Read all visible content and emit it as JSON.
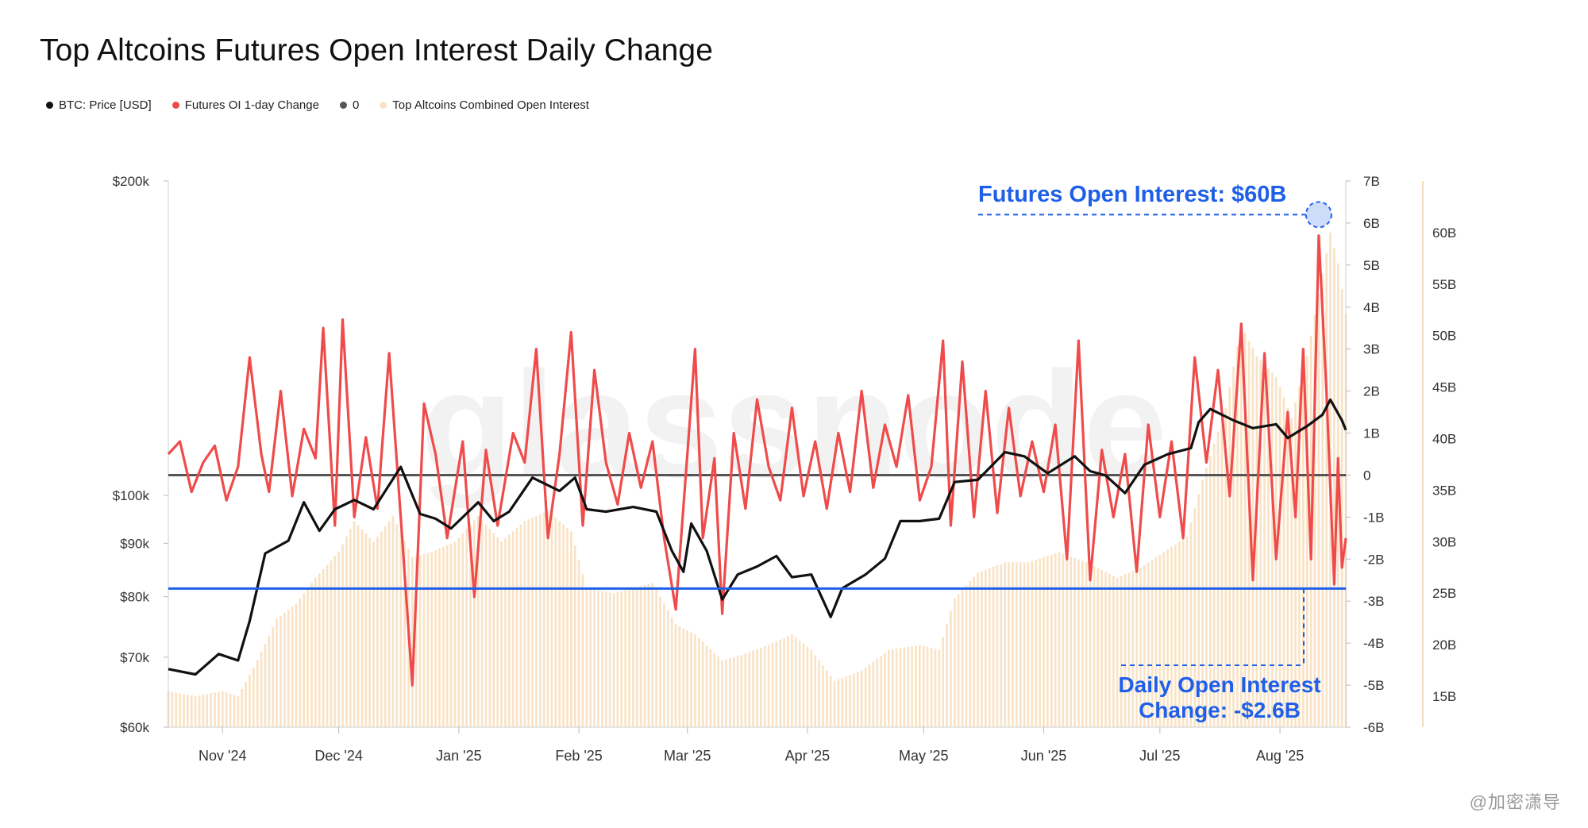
{
  "title": "Top Altcoins Futures Open Interest Daily Change",
  "watermark": "glassnode",
  "corner_mark": "@加密潇导",
  "legend": [
    {
      "label": "BTC: Price [USD]",
      "color": "#111111"
    },
    {
      "label": "Futures OI 1-day Change",
      "color": "#ef4b4b"
    },
    {
      "label": "0",
      "color": "#555555"
    },
    {
      "label": "Top Altcoins Combined Open Interest",
      "color": "#f9e2c4"
    }
  ],
  "annotations": {
    "top_label": "Futures Open Interest: $60B",
    "bottom_label_line1": "Daily Open Interest",
    "bottom_label_line2": "Change: -$2.6B",
    "color": "#1f5fe8"
  },
  "chart_data": {
    "type": "line",
    "x_start": "2024-10-18",
    "x_end": "2025-08-18",
    "x_ticks": [
      "Nov '24",
      "Dec '24",
      "Jan '25",
      "Feb '25",
      "Mar '25",
      "Apr '25",
      "May '25",
      "Jun '25",
      "Jul '25",
      "Aug '25"
    ],
    "y_left": {
      "scale": "log",
      "range": [
        60000,
        200000
      ],
      "ticks": [
        {
          "v": 200000,
          "l": "$200k"
        },
        {
          "v": 100000,
          "l": "$100k"
        },
        {
          "v": 90000,
          "l": "$90k"
        },
        {
          "v": 80000,
          "l": "$80k"
        },
        {
          "v": 70000,
          "l": "$70k"
        },
        {
          "v": 60000,
          "l": "$60k"
        }
      ]
    },
    "y_right": {
      "range": [
        -6,
        7
      ],
      "unit": "B",
      "ticks": [
        "7B",
        "6B",
        "5B",
        "4B",
        "3B",
        "2B",
        "1B",
        "0",
        "-1B",
        "-2B",
        "-3B",
        "-4B",
        "-5B",
        "-6B"
      ]
    },
    "y_far_right": {
      "range": [
        12,
        65
      ],
      "unit": "B",
      "ticks": [
        "60B",
        "55B",
        "50B",
        "45B",
        "40B",
        "35B",
        "30B",
        "25B",
        "20B",
        "15B"
      ]
    },
    "reference_line": {
      "axis": "y_right",
      "value": -2.7
    },
    "series": [
      {
        "name": "BTC: Price [USD]",
        "axis": "y_left",
        "color": "#111111",
        "points": [
          [
            "2024-10-18",
            68200
          ],
          [
            "2024-10-25",
            67400
          ],
          [
            "2024-10-31",
            70500
          ],
          [
            "2024-11-05",
            69500
          ],
          [
            "2024-11-08",
            75800
          ],
          [
            "2024-11-12",
            88000
          ],
          [
            "2024-11-18",
            90500
          ],
          [
            "2024-11-22",
            98500
          ],
          [
            "2024-11-26",
            92500
          ],
          [
            "2024-11-30",
            97000
          ],
          [
            "2024-12-05",
            99000
          ],
          [
            "2024-12-10",
            97000
          ],
          [
            "2024-12-17",
            106500
          ],
          [
            "2024-12-22",
            96000
          ],
          [
            "2024-12-26",
            95000
          ],
          [
            "2024-12-30",
            93000
          ],
          [
            "2025-01-06",
            98500
          ],
          [
            "2025-01-10",
            94500
          ],
          [
            "2025-01-14",
            96500
          ],
          [
            "2025-01-20",
            104000
          ],
          [
            "2025-01-27",
            101000
          ],
          [
            "2025-01-31",
            104000
          ],
          [
            "2025-02-03",
            97000
          ],
          [
            "2025-02-08",
            96500
          ],
          [
            "2025-02-15",
            97500
          ],
          [
            "2025-02-21",
            96500
          ],
          [
            "2025-02-25",
            88500
          ],
          [
            "2025-02-28",
            84500
          ],
          [
            "2025-03-02",
            94000
          ],
          [
            "2025-03-06",
            88500
          ],
          [
            "2025-03-10",
            79500
          ],
          [
            "2025-03-14",
            84000
          ],
          [
            "2025-03-19",
            85500
          ],
          [
            "2025-03-24",
            87500
          ],
          [
            "2025-03-28",
            83500
          ],
          [
            "2025-04-02",
            84000
          ],
          [
            "2025-04-07",
            76500
          ],
          [
            "2025-04-10",
            81500
          ],
          [
            "2025-04-16",
            84000
          ],
          [
            "2025-04-21",
            87000
          ],
          [
            "2025-04-25",
            94500
          ],
          [
            "2025-04-30",
            94500
          ],
          [
            "2025-05-05",
            95000
          ],
          [
            "2025-05-09",
            103000
          ],
          [
            "2025-05-15",
            103500
          ],
          [
            "2025-05-22",
            110000
          ],
          [
            "2025-05-27",
            109000
          ],
          [
            "2025-06-02",
            105000
          ],
          [
            "2025-06-09",
            109000
          ],
          [
            "2025-06-13",
            105500
          ],
          [
            "2025-06-17",
            104500
          ],
          [
            "2025-06-22",
            100500
          ],
          [
            "2025-06-27",
            107000
          ],
          [
            "2025-07-03",
            109500
          ],
          [
            "2025-07-09",
            111000
          ],
          [
            "2025-07-11",
            117500
          ],
          [
            "2025-07-14",
            121000
          ],
          [
            "2025-07-20",
            118000
          ],
          [
            "2025-07-25",
            116000
          ],
          [
            "2025-07-31",
            117000
          ],
          [
            "2025-08-03",
            113500
          ],
          [
            "2025-08-08",
            116500
          ],
          [
            "2025-08-12",
            119500
          ],
          [
            "2025-08-14",
            123500
          ],
          [
            "2025-08-17",
            118000
          ],
          [
            "2025-08-18",
            115500
          ]
        ]
      },
      {
        "name": "Futures OI 1-day Change",
        "axis": "y_right",
        "color": "#ef4b4b",
        "points": [
          [
            "2024-10-18",
            0.5
          ],
          [
            "2024-10-21",
            0.8
          ],
          [
            "2024-10-24",
            -0.4
          ],
          [
            "2024-10-27",
            0.3
          ],
          [
            "2024-10-30",
            0.7
          ],
          [
            "2024-11-02",
            -0.6
          ],
          [
            "2024-11-05",
            0.2
          ],
          [
            "2024-11-08",
            2.8
          ],
          [
            "2024-11-11",
            0.5
          ],
          [
            "2024-11-13",
            -0.4
          ],
          [
            "2024-11-16",
            2.0
          ],
          [
            "2024-11-19",
            -0.5
          ],
          [
            "2024-11-22",
            1.1
          ],
          [
            "2024-11-25",
            0.4
          ],
          [
            "2024-11-27",
            3.5
          ],
          [
            "2024-11-30",
            -1.2
          ],
          [
            "2024-12-02",
            3.7
          ],
          [
            "2024-12-05",
            -1.0
          ],
          [
            "2024-12-08",
            0.9
          ],
          [
            "2024-12-11",
            -0.8
          ],
          [
            "2024-12-14",
            2.9
          ],
          [
            "2024-12-17",
            -1.0
          ],
          [
            "2024-12-20",
            -5.0
          ],
          [
            "2024-12-23",
            1.7
          ],
          [
            "2024-12-26",
            0.5
          ],
          [
            "2024-12-29",
            -1.5
          ],
          [
            "2025-01-02",
            0.8
          ],
          [
            "2025-01-05",
            -2.9
          ],
          [
            "2025-01-08",
            0.6
          ],
          [
            "2025-01-11",
            -1.2
          ],
          [
            "2025-01-15",
            1.0
          ],
          [
            "2025-01-18",
            0.3
          ],
          [
            "2025-01-21",
            3.0
          ],
          [
            "2025-01-24",
            -1.5
          ],
          [
            "2025-01-27",
            0.5
          ],
          [
            "2025-01-30",
            3.4
          ],
          [
            "2025-02-02",
            -1.2
          ],
          [
            "2025-02-05",
            2.5
          ],
          [
            "2025-02-08",
            0.3
          ],
          [
            "2025-02-11",
            -0.7
          ],
          [
            "2025-02-14",
            1.0
          ],
          [
            "2025-02-17",
            -0.3
          ],
          [
            "2025-02-20",
            0.8
          ],
          [
            "2025-02-23",
            -1.5
          ],
          [
            "2025-02-26",
            -3.2
          ],
          [
            "2025-03-01",
            0.5
          ],
          [
            "2025-03-03",
            3.0
          ],
          [
            "2025-03-05",
            -1.5
          ],
          [
            "2025-03-08",
            0.4
          ],
          [
            "2025-03-10",
            -3.3
          ],
          [
            "2025-03-13",
            1.0
          ],
          [
            "2025-03-16",
            -0.8
          ],
          [
            "2025-03-19",
            1.8
          ],
          [
            "2025-03-22",
            0.2
          ],
          [
            "2025-03-25",
            -0.6
          ],
          [
            "2025-03-28",
            1.6
          ],
          [
            "2025-03-31",
            -0.5
          ],
          [
            "2025-04-03",
            0.8
          ],
          [
            "2025-04-06",
            -0.8
          ],
          [
            "2025-04-09",
            1.0
          ],
          [
            "2025-04-12",
            -0.4
          ],
          [
            "2025-04-15",
            2.0
          ],
          [
            "2025-04-18",
            -0.3
          ],
          [
            "2025-04-21",
            1.2
          ],
          [
            "2025-04-24",
            0.2
          ],
          [
            "2025-04-27",
            1.9
          ],
          [
            "2025-04-30",
            -0.6
          ],
          [
            "2025-05-03",
            0.2
          ],
          [
            "2025-05-06",
            3.2
          ],
          [
            "2025-05-08",
            -1.2
          ],
          [
            "2025-05-11",
            2.7
          ],
          [
            "2025-05-14",
            -1.0
          ],
          [
            "2025-05-17",
            2.0
          ],
          [
            "2025-05-20",
            -0.9
          ],
          [
            "2025-05-23",
            1.6
          ],
          [
            "2025-05-26",
            -0.5
          ],
          [
            "2025-05-29",
            0.8
          ],
          [
            "2025-06-01",
            -0.4
          ],
          [
            "2025-06-04",
            1.2
          ],
          [
            "2025-06-07",
            -2.0
          ],
          [
            "2025-06-10",
            3.2
          ],
          [
            "2025-06-13",
            -2.5
          ],
          [
            "2025-06-16",
            0.6
          ],
          [
            "2025-06-19",
            -1.0
          ],
          [
            "2025-06-22",
            0.5
          ],
          [
            "2025-06-25",
            -2.3
          ],
          [
            "2025-06-28",
            1.2
          ],
          [
            "2025-07-01",
            -1.0
          ],
          [
            "2025-07-04",
            0.8
          ],
          [
            "2025-07-07",
            -1.5
          ],
          [
            "2025-07-10",
            2.8
          ],
          [
            "2025-07-13",
            0.3
          ],
          [
            "2025-07-16",
            2.5
          ],
          [
            "2025-07-19",
            -0.5
          ],
          [
            "2025-07-22",
            3.6
          ],
          [
            "2025-07-25",
            -2.5
          ],
          [
            "2025-07-28",
            2.9
          ],
          [
            "2025-07-31",
            -2.0
          ],
          [
            "2025-08-03",
            1.5
          ],
          [
            "2025-08-05",
            -1.0
          ],
          [
            "2025-08-07",
            3.0
          ],
          [
            "2025-08-09",
            -2.0
          ],
          [
            "2025-08-11",
            5.7
          ],
          [
            "2025-08-13",
            2.0
          ],
          [
            "2025-08-15",
            -2.6
          ],
          [
            "2025-08-16",
            0.4
          ],
          [
            "2025-08-17",
            -2.2
          ],
          [
            "2025-08-18",
            -1.5
          ]
        ]
      },
      {
        "name": "Top Altcoins Combined Open Interest",
        "axis": "y_far_right",
        "color": "#f7d9b3",
        "points": [
          [
            "2024-10-18",
            15.5
          ],
          [
            "2024-10-25",
            15.0
          ],
          [
            "2024-11-01",
            15.5
          ],
          [
            "2024-11-05",
            15.0
          ],
          [
            "2024-11-10",
            18.5
          ],
          [
            "2024-11-15",
            22.5
          ],
          [
            "2024-11-20",
            24.0
          ],
          [
            "2024-11-25",
            26.5
          ],
          [
            "2024-12-01",
            29.0
          ],
          [
            "2024-12-05",
            32.0
          ],
          [
            "2024-12-10",
            30.0
          ],
          [
            "2024-12-15",
            32.5
          ],
          [
            "2024-12-20",
            28.5
          ],
          [
            "2024-12-25",
            29.0
          ],
          [
            "2024-12-31",
            30.0
          ],
          [
            "2025-01-06",
            32.5
          ],
          [
            "2025-01-12",
            30.0
          ],
          [
            "2025-01-18",
            32.0
          ],
          [
            "2025-01-24",
            33.0
          ],
          [
            "2025-01-30",
            31.0
          ],
          [
            "2025-02-03",
            25.5
          ],
          [
            "2025-02-10",
            25.0
          ],
          [
            "2025-02-20",
            26.0
          ],
          [
            "2025-02-26",
            22.0
          ],
          [
            "2025-03-03",
            21.0
          ],
          [
            "2025-03-10",
            18.5
          ],
          [
            "2025-03-15",
            19.0
          ],
          [
            "2025-03-22",
            20.0
          ],
          [
            "2025-03-28",
            21.0
          ],
          [
            "2025-04-02",
            19.5
          ],
          [
            "2025-04-08",
            16.5
          ],
          [
            "2025-04-15",
            17.5
          ],
          [
            "2025-04-22",
            19.5
          ],
          [
            "2025-04-30",
            20.0
          ],
          [
            "2025-05-05",
            19.5
          ],
          [
            "2025-05-09",
            24.5
          ],
          [
            "2025-05-15",
            27.0
          ],
          [
            "2025-05-22",
            28.0
          ],
          [
            "2025-05-28",
            28.0
          ],
          [
            "2025-06-05",
            29.0
          ],
          [
            "2025-06-12",
            28.0
          ],
          [
            "2025-06-20",
            26.5
          ],
          [
            "2025-06-26",
            27.5
          ],
          [
            "2025-07-02",
            29.0
          ],
          [
            "2025-07-08",
            30.5
          ],
          [
            "2025-07-12",
            36.0
          ],
          [
            "2025-07-18",
            43.0
          ],
          [
            "2025-07-22",
            51.0
          ],
          [
            "2025-07-26",
            48.0
          ],
          [
            "2025-07-31",
            46.0
          ],
          [
            "2025-08-04",
            42.0
          ],
          [
            "2025-08-08",
            48.0
          ],
          [
            "2025-08-12",
            56.0
          ],
          [
            "2025-08-14",
            60.0
          ],
          [
            "2025-08-16",
            57.0
          ],
          [
            "2025-08-18",
            52.0
          ]
        ]
      }
    ]
  }
}
